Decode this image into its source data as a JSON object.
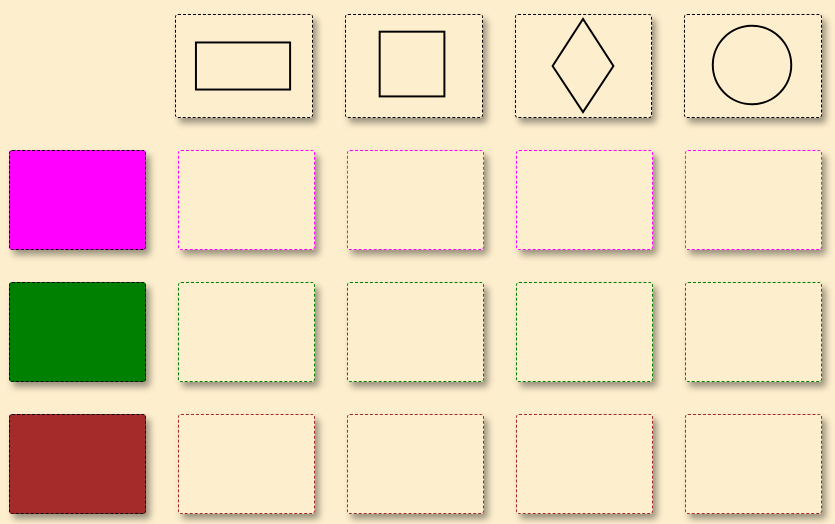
{
  "shapes": [
    {
      "name": "rectangle"
    },
    {
      "name": "square"
    },
    {
      "name": "diamond"
    },
    {
      "name": "circle"
    }
  ],
  "colors": [
    {
      "name": "magenta",
      "hex": "#ff00ff"
    },
    {
      "name": "green",
      "hex": "#008000"
    },
    {
      "name": "brown",
      "hex": "#a52a2a"
    }
  ],
  "background_color": "#fdeecd"
}
